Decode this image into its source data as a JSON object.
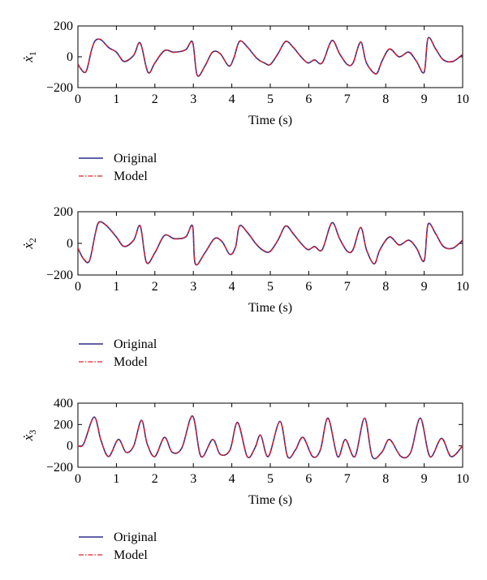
{
  "colors": {
    "original": "#2b2b8a",
    "model": "#e0202a",
    "axis": "#000000"
  },
  "chart_data": [
    {
      "type": "line",
      "ylabel_main": "ẋ",
      "ylabel_sub": "1",
      "xlabel": "Time (s)",
      "xlim": [
        0,
        10
      ],
      "ylim": [
        -200,
        200
      ],
      "xticks": [
        "0",
        "1",
        "2",
        "3",
        "4",
        "5",
        "6",
        "7",
        "8",
        "9",
        "10"
      ],
      "yticks": [
        "200",
        "0",
        "−200"
      ],
      "ytick_values": [
        200,
        0,
        -200
      ],
      "legend": {
        "placement": "below",
        "entries": [
          "Original",
          "Model"
        ]
      },
      "x": [
        0,
        0.2,
        0.35,
        0.45,
        0.6,
        0.8,
        1.0,
        1.2,
        1.45,
        1.62,
        1.82,
        2.0,
        2.25,
        2.5,
        2.8,
        2.98,
        3.1,
        3.3,
        3.5,
        3.7,
        3.92,
        4.05,
        4.2,
        4.4,
        4.65,
        4.85,
        5.0,
        5.2,
        5.4,
        5.6,
        5.8,
        5.98,
        6.15,
        6.35,
        6.6,
        6.8,
        7.0,
        7.15,
        7.35,
        7.5,
        7.75,
        7.9,
        8.1,
        8.35,
        8.6,
        8.8,
        9.0,
        9.1,
        9.3,
        9.5,
        9.75,
        10.0
      ],
      "series": [
        {
          "name": "Original",
          "values": [
            -50,
            -100,
            40,
            105,
            110,
            60,
            30,
            -30,
            10,
            90,
            -100,
            -40,
            40,
            30,
            45,
            95,
            -120,
            -60,
            30,
            20,
            -60,
            -10,
            100,
            65,
            -10,
            -40,
            -50,
            20,
            100,
            60,
            0,
            -40,
            -20,
            -40,
            105,
            20,
            -50,
            -40,
            95,
            -40,
            -110,
            -30,
            50,
            0,
            30,
            -30,
            -100,
            120,
            50,
            -20,
            -30,
            15
          ]
        },
        {
          "name": "Model",
          "values": [
            -52,
            -98,
            42,
            103,
            112,
            58,
            32,
            -28,
            12,
            88,
            -102,
            -38,
            42,
            28,
            47,
            93,
            -118,
            -62,
            32,
            18,
            -58,
            -12,
            102,
            63,
            -8,
            -42,
            -48,
            22,
            98,
            62,
            -2,
            -38,
            -22,
            -38,
            103,
            22,
            -48,
            -42,
            97,
            -38,
            -112,
            -28,
            52,
            -2,
            32,
            -28,
            -98,
            118,
            52,
            -22,
            -28,
            17
          ]
        }
      ]
    },
    {
      "type": "line",
      "ylabel_main": "ẋ",
      "ylabel_sub": "2",
      "xlabel": "Time (s)",
      "xlim": [
        0,
        10
      ],
      "ylim": [
        -200,
        200
      ],
      "xticks": [
        "0",
        "1",
        "2",
        "3",
        "4",
        "5",
        "6",
        "7",
        "8",
        "9",
        "10"
      ],
      "yticks": [
        "200",
        "0",
        "−200"
      ],
      "ytick_values": [
        200,
        0,
        -200
      ],
      "legend": {
        "placement": "below",
        "entries": [
          "Original",
          "Model"
        ]
      },
      "x": [
        0,
        0.15,
        0.3,
        0.45,
        0.55,
        0.75,
        1.0,
        1.2,
        1.45,
        1.62,
        1.78,
        2.0,
        2.25,
        2.5,
        2.8,
        2.98,
        3.05,
        3.3,
        3.55,
        3.75,
        3.95,
        4.1,
        4.2,
        4.4,
        4.65,
        4.85,
        5.0,
        5.2,
        5.4,
        5.6,
        5.8,
        5.98,
        6.15,
        6.35,
        6.6,
        6.8,
        7.0,
        7.15,
        7.35,
        7.5,
        7.7,
        7.85,
        8.1,
        8.35,
        8.6,
        8.8,
        9.0,
        9.1,
        9.3,
        9.5,
        9.75,
        10.0
      ],
      "series": [
        {
          "name": "Original",
          "values": [
            -30,
            -100,
            -110,
            60,
            135,
            110,
            40,
            -20,
            20,
            110,
            -120,
            -60,
            50,
            30,
            40,
            110,
            -130,
            -60,
            30,
            10,
            -70,
            -20,
            110,
            70,
            -10,
            -50,
            -50,
            20,
            110,
            60,
            0,
            -40,
            -20,
            -40,
            130,
            30,
            -50,
            -40,
            100,
            -40,
            -130,
            -40,
            40,
            -10,
            20,
            -30,
            -110,
            120,
            60,
            -20,
            -30,
            20
          ]
        },
        {
          "name": "Model",
          "values": [
            -32,
            -98,
            -108,
            58,
            133,
            112,
            42,
            -18,
            22,
            108,
            -118,
            -58,
            52,
            28,
            42,
            108,
            -128,
            -62,
            32,
            8,
            -68,
            -22,
            108,
            72,
            -8,
            -48,
            -52,
            22,
            108,
            62,
            -2,
            -38,
            -22,
            -38,
            128,
            32,
            -48,
            -42,
            102,
            -38,
            -128,
            -42,
            42,
            -12,
            22,
            -28,
            -108,
            118,
            62,
            -22,
            -28,
            22
          ]
        }
      ]
    },
    {
      "type": "line",
      "ylabel_main": "ẋ",
      "ylabel_sub": "3",
      "xlabel": "Time (s)",
      "xlim": [
        0,
        10
      ],
      "ylim": [
        -200,
        400
      ],
      "xticks": [
        "0",
        "1",
        "2",
        "3",
        "4",
        "5",
        "6",
        "7",
        "8",
        "9",
        "10"
      ],
      "yticks": [
        "400",
        "200",
        "0",
        "−200"
      ],
      "ytick_values": [
        400,
        200,
        0,
        -200
      ],
      "legend": {
        "placement": "below",
        "entries": [
          "Original",
          "Model"
        ]
      },
      "x": [
        0,
        0.15,
        0.42,
        0.6,
        0.8,
        1.05,
        1.25,
        1.45,
        1.65,
        1.8,
        2.0,
        2.25,
        2.45,
        2.7,
        2.98,
        3.2,
        3.5,
        3.7,
        3.95,
        4.15,
        4.4,
        4.6,
        4.75,
        4.95,
        5.25,
        5.45,
        5.65,
        5.85,
        6.1,
        6.3,
        6.5,
        6.75,
        6.95,
        7.2,
        7.45,
        7.65,
        7.9,
        8.1,
        8.4,
        8.65,
        8.9,
        9.15,
        9.45,
        9.7,
        10.0
      ],
      "series": [
        {
          "name": "Original",
          "values": [
            0,
            20,
            270,
            50,
            -100,
            60,
            -60,
            0,
            240,
            20,
            -100,
            80,
            -60,
            -20,
            280,
            -100,
            60,
            -80,
            -40,
            220,
            -100,
            -20,
            100,
            -100,
            230,
            -100,
            -40,
            80,
            -100,
            -40,
            260,
            -100,
            60,
            -100,
            260,
            -100,
            -60,
            60,
            -100,
            -60,
            260,
            -100,
            70,
            -100,
            0
          ]
        },
        {
          "name": "Model",
          "values": [
            2,
            18,
            268,
            52,
            -98,
            58,
            -58,
            2,
            238,
            22,
            -98,
            78,
            -58,
            -22,
            278,
            -98,
            58,
            -78,
            -42,
            218,
            -98,
            -22,
            98,
            -98,
            228,
            -98,
            -42,
            78,
            -98,
            -42,
            258,
            -98,
            58,
            -98,
            258,
            -98,
            -58,
            58,
            -98,
            -58,
            258,
            -98,
            68,
            -98,
            2
          ]
        }
      ]
    }
  ]
}
